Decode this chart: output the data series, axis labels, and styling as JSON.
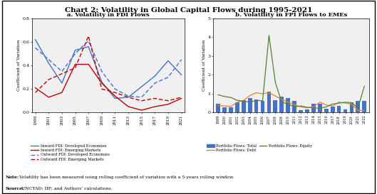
{
  "title": "Chart 2: Volatility in Global Capital Flows during 1995-2021",
  "panel_a_title": "a. Volatility in FDI Flows",
  "panel_b_title": "b. Volatility in FPI Flows to EMEs",
  "ylabel": "Coefficient of Variation",
  "note_bold": "Note:",
  "note_rest": " Volatility has been measured using rolling coefficient of variation with a 5-years rolling window.",
  "source_bold": "Source:",
  "source_rest": " UNCTAD; IIF; and Authors' calculations.",
  "fdi_years": [
    1999,
    2001,
    2003,
    2005,
    2007,
    2009,
    2011,
    2013,
    2015,
    2017,
    2019,
    2021
  ],
  "inward_dev": [
    0.62,
    0.42,
    0.25,
    0.53,
    0.56,
    0.26,
    0.12,
    0.13,
    0.22,
    0.31,
    0.44,
    0.32
  ],
  "inward_em": [
    0.21,
    0.13,
    0.17,
    0.41,
    0.41,
    0.25,
    0.14,
    0.05,
    0.02,
    0.05,
    0.07,
    0.12
  ],
  "outward_dev": [
    0.55,
    0.45,
    0.35,
    0.5,
    0.61,
    0.35,
    0.2,
    0.14,
    0.13,
    0.25,
    0.3,
    0.45
  ],
  "outward_em": [
    0.17,
    0.28,
    0.33,
    0.38,
    0.65,
    0.2,
    0.17,
    0.13,
    0.1,
    0.12,
    0.1,
    0.13
  ],
  "fpi_years": [
    1999,
    2000,
    2001,
    2002,
    2003,
    2004,
    2005,
    2006,
    2007,
    2008,
    2009,
    2010,
    2011,
    2012,
    2013,
    2014,
    2015,
    2016,
    2017,
    2018,
    2019,
    2020,
    2021,
    2022
  ],
  "pf_total": [
    0.48,
    0.27,
    0.28,
    0.55,
    0.65,
    0.78,
    0.68,
    0.62,
    1.1,
    0.65,
    0.85,
    0.78,
    0.6,
    0.12,
    0.18,
    0.48,
    0.45,
    0.22,
    0.3,
    0.35,
    0.18,
    0.55,
    0.62,
    0.6
  ],
  "pf_debt": [
    0.38,
    0.35,
    0.32,
    0.55,
    0.65,
    0.9,
    1.05,
    1.0,
    1.05,
    0.88,
    0.7,
    0.55,
    0.42,
    0.3,
    0.25,
    0.3,
    0.55,
    0.4,
    0.35,
    0.55,
    0.5,
    0.45,
    0.1,
    0.12
  ],
  "pf_equity": [
    0.95,
    0.85,
    0.8,
    0.65,
    0.6,
    0.55,
    0.65,
    0.62,
    4.1,
    1.6,
    0.55,
    0.45,
    0.3,
    0.35,
    0.28,
    0.25,
    0.22,
    0.3,
    0.45,
    0.5,
    0.55,
    0.52,
    0.25,
    1.4
  ],
  "color_blue": "#4472C4",
  "color_red": "#C00000",
  "color_orange": "#ED7D31",
  "color_green": "#548235",
  "bg_color": "#F0F0F0"
}
